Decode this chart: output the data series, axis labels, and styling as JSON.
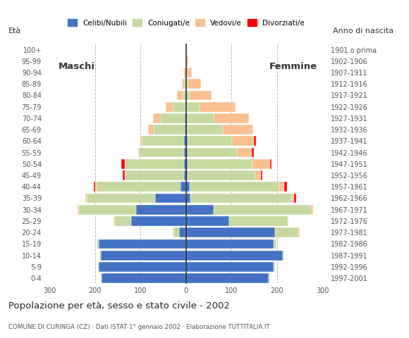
{
  "age_groups": [
    "0-4",
    "5-9",
    "10-14",
    "15-19",
    "20-24",
    "25-29",
    "30-34",
    "35-39",
    "40-44",
    "45-49",
    "50-54",
    "55-59",
    "60-64",
    "65-69",
    "70-74",
    "75-79",
    "80-84",
    "85-89",
    "90-94",
    "95-99",
    "100+"
  ],
  "birth_years": [
    "1997-2001",
    "1992-1996",
    "1987-1991",
    "1982-1986",
    "1977-1981",
    "1972-1976",
    "1967-1971",
    "1962-1966",
    "1957-1961",
    "1952-1956",
    "1947-1951",
    "1942-1946",
    "1937-1941",
    "1932-1936",
    "1927-1931",
    "1922-1926",
    "1917-1921",
    "1912-1916",
    "1907-1911",
    "1902-1906",
    "1901 o prima"
  ],
  "male": {
    "celibi": [
      185,
      192,
      188,
      192,
      15,
      120,
      110,
      68,
      12,
      5,
      5,
      5,
      4,
      3,
      3,
      2,
      0,
      0,
      0,
      0,
      0
    ],
    "coniugati": [
      2,
      2,
      2,
      5,
      13,
      38,
      125,
      150,
      185,
      128,
      128,
      98,
      92,
      68,
      52,
      28,
      8,
      4,
      0,
      0,
      0
    ],
    "vedovi": [
      0,
      0,
      0,
      0,
      2,
      2,
      3,
      4,
      2,
      2,
      2,
      2,
      5,
      12,
      18,
      15,
      12,
      5,
      4,
      0,
      0
    ],
    "divorziati": [
      0,
      0,
      0,
      0,
      0,
      0,
      0,
      0,
      4,
      5,
      8,
      0,
      0,
      0,
      0,
      0,
      0,
      0,
      0,
      0,
      0
    ]
  },
  "female": {
    "celibi": [
      182,
      193,
      213,
      193,
      195,
      95,
      60,
      10,
      8,
      4,
      4,
      4,
      3,
      2,
      2,
      2,
      0,
      0,
      0,
      0,
      0
    ],
    "coniugati": [
      2,
      2,
      2,
      5,
      52,
      128,
      215,
      222,
      196,
      148,
      142,
      108,
      98,
      78,
      58,
      28,
      8,
      4,
      2,
      0,
      0
    ],
    "vedovi": [
      0,
      0,
      0,
      0,
      2,
      2,
      4,
      5,
      12,
      12,
      38,
      32,
      48,
      68,
      78,
      78,
      48,
      28,
      10,
      5,
      0
    ],
    "divorziati": [
      0,
      0,
      0,
      0,
      0,
      0,
      0,
      5,
      5,
      3,
      3,
      5,
      5,
      0,
      0,
      0,
      0,
      0,
      0,
      0,
      0
    ]
  },
  "colors": {
    "celibi": "#4472C4",
    "coniugati": "#C6D9A0",
    "vedovi": "#FAC090",
    "divorziati": "#FF0000"
  },
  "categories": [
    "celibi",
    "coniugati",
    "vedovi",
    "divorziati"
  ],
  "xlim": 310,
  "title": "Popolazione per età, sesso e stato civile - 2002",
  "subtitle": "COMUNE DI CURINGA (CZ) · Dati ISTAT 1° gennaio 2002 · Elaborazione TUTTITALIA.IT",
  "legend_labels": [
    "Celibi/Nubili",
    "Coniugati/e",
    "Vedovi/e",
    "Divorziati/e"
  ],
  "label_eta": "Età",
  "label_anno": "Anno di nascita",
  "label_maschi": "Maschi",
  "label_femmine": "Femmine",
  "background_color": "#FFFFFF",
  "grid_color": "#BBBBBB"
}
